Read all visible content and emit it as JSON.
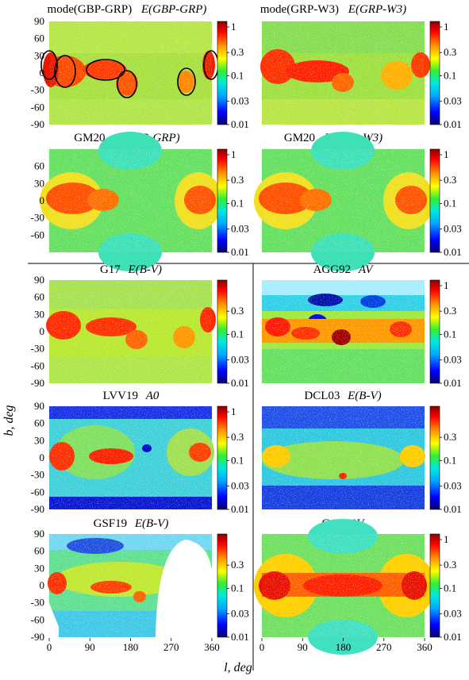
{
  "figure": {
    "ylabel": "b, deg",
    "xlabel": "l, deg",
    "x_ticks": [
      "0",
      "90",
      "180",
      "270",
      "360"
    ],
    "y_ticks_top": [
      "90",
      "60",
      "30",
      "0",
      "-30",
      "-60",
      "-90"
    ],
    "y_ticks_gm": [
      "60",
      "30",
      "0",
      "-30",
      "-60"
    ]
  },
  "colorbars": {
    "A": [
      "1",
      "0.3",
      "0.1",
      "0.03",
      "0.01"
    ],
    "B": [
      "0.3",
      "0.1",
      "0.03",
      "0.01"
    ]
  },
  "colors": {
    "scale": [
      "#08006e",
      "#0000ff",
      "#00aaff",
      "#00e8e0",
      "#33ee33",
      "#ffff00",
      "#ff9900",
      "#ff0000",
      "#8b0000"
    ],
    "blank": "#ffffff"
  },
  "chart_data": [
    {
      "id": "p1",
      "type": "heatmap",
      "title_main": "mode(GBP-GRP)",
      "title_sub": "E(GBP-GRP)",
      "colorbar": "A",
      "xlim": [
        0,
        360
      ],
      "ylim": [
        -90,
        90
      ],
      "scale": "log",
      "circled_regions": [
        {
          "l": 7,
          "b": 0
        },
        {
          "l": 50,
          "b": 0
        },
        {
          "l": 125,
          "b": 10
        },
        {
          "l": 165,
          "b": -15
        },
        {
          "l": 295,
          "b": -15
        },
        {
          "l": 358,
          "b": 10
        }
      ]
    },
    {
      "id": "p2",
      "type": "heatmap",
      "title_main": "mode(GRP-W3)",
      "title_sub": "E(GRP-W3)",
      "colorbar": "A",
      "xlim": [
        0,
        360
      ],
      "ylim": [
        -90,
        90
      ],
      "scale": "log"
    },
    {
      "id": "p3",
      "type": "heatmap",
      "title_main": "GM20",
      "title_sub": "E(GBP-GRP)",
      "colorbar": "A",
      "xlim": [
        0,
        360
      ],
      "ylim": [
        -90,
        90
      ],
      "scale": "log"
    },
    {
      "id": "p4",
      "type": "heatmap",
      "title_main": "GM20",
      "title_sub": "E(GRP-W3)",
      "colorbar": "A",
      "xlim": [
        0,
        360
      ],
      "ylim": [
        -90,
        90
      ],
      "scale": "log"
    },
    {
      "id": "p5",
      "type": "heatmap",
      "title_main": "G17",
      "title_sub": "E(B-V)",
      "colorbar": "B",
      "xlim": [
        0,
        360
      ],
      "ylim": [
        -90,
        90
      ],
      "scale": "log"
    },
    {
      "id": "p6",
      "type": "heatmap",
      "title_main": "AGG92",
      "title_sub": "AV",
      "colorbar": "A",
      "xlim": [
        0,
        360
      ],
      "ylim": [
        -90,
        90
      ],
      "scale": "log"
    },
    {
      "id": "p7",
      "type": "heatmap",
      "title_main": "LVV19",
      "title_sub": "A0",
      "colorbar": "A",
      "xlim": [
        0,
        360
      ],
      "ylim": [
        -90,
        90
      ],
      "scale": "log"
    },
    {
      "id": "p8",
      "type": "heatmap",
      "title_main": "DCL03",
      "title_sub": "E(B-V)",
      "colorbar": "B",
      "xlim": [
        0,
        360
      ],
      "ylim": [
        -90,
        90
      ],
      "scale": "log"
    },
    {
      "id": "p9",
      "type": "heatmap",
      "title_main": "GSF19",
      "title_sub": "E(B-V)",
      "colorbar": "B",
      "xlim": [
        0,
        360
      ],
      "ylim": [
        -90,
        90
      ],
      "scale": "log"
    },
    {
      "id": "p10",
      "type": "heatmap",
      "title_main": "G12",
      "title_sub": "AV",
      "colorbar": "A",
      "xlim": [
        0,
        360
      ],
      "ylim": [
        -90,
        90
      ],
      "scale": "log"
    }
  ]
}
